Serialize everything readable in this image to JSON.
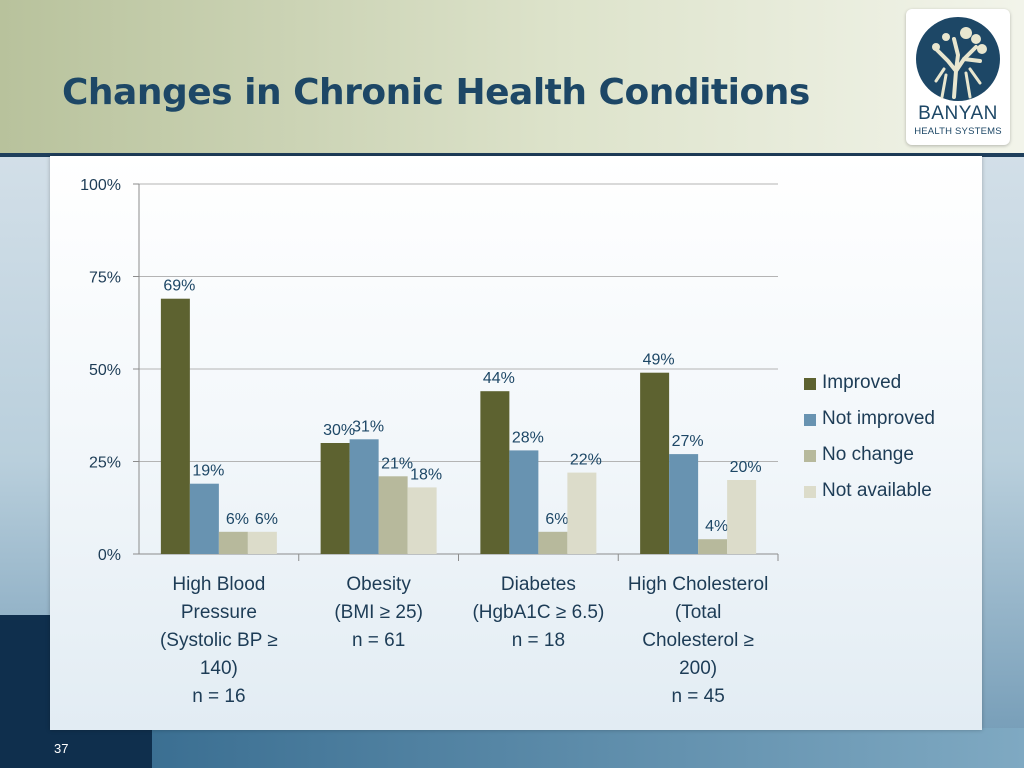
{
  "slide": {
    "title": "Changes in Chronic Health Conditions",
    "page_number": "37"
  },
  "logo": {
    "name": "BANYAN",
    "sub": "HEALTH SYSTEMS",
    "icon": "banyan-tree-icon"
  },
  "colors": {
    "header_bg": "#c9d2b4",
    "title": "#1d4766",
    "dark_block": "#0f2f4d",
    "improved": "#5d6230",
    "not_improved": "#6893b1",
    "no_change": "#b7b99c",
    "not_available": "#dcdcca"
  },
  "chart_data": {
    "type": "bar",
    "categories": [
      [
        "High Blood",
        "Pressure",
        "(Systolic BP ≥",
        "140)",
        "n = 16"
      ],
      [
        "Obesity",
        "(BMI ≥ 25)",
        "n = 61"
      ],
      [
        "Diabetes",
        "(HgbA1C ≥ 6.5)",
        "n = 18"
      ],
      [
        "High Cholesterol",
        "(Total",
        "Cholesterol ≥",
        "200)",
        "n = 45"
      ]
    ],
    "series": [
      {
        "name": "Improved",
        "color": "#5d6230",
        "values": [
          69,
          30,
          44,
          49
        ],
        "labels": [
          "69%",
          "30%",
          "44%",
          "49%"
        ]
      },
      {
        "name": "Not improved",
        "color": "#6893b1",
        "values": [
          19,
          31,
          28,
          27
        ],
        "labels": [
          "19%",
          "31%",
          "28%",
          "27%"
        ]
      },
      {
        "name": "No change",
        "color": "#b7b99c",
        "values": [
          6,
          21,
          6,
          4
        ],
        "labels": [
          "6%",
          "21%",
          "6%",
          "4%"
        ]
      },
      {
        "name": "Not available",
        "color": "#dcdcca",
        "values": [
          6,
          18,
          22,
          20
        ],
        "labels": [
          "6%",
          "18%",
          "22%",
          "20%"
        ]
      }
    ],
    "yticks": [
      "0%",
      "25%",
      "50%",
      "75%",
      "100%"
    ],
    "ylim": [
      0,
      100
    ],
    "grid": true,
    "legend": "right"
  }
}
